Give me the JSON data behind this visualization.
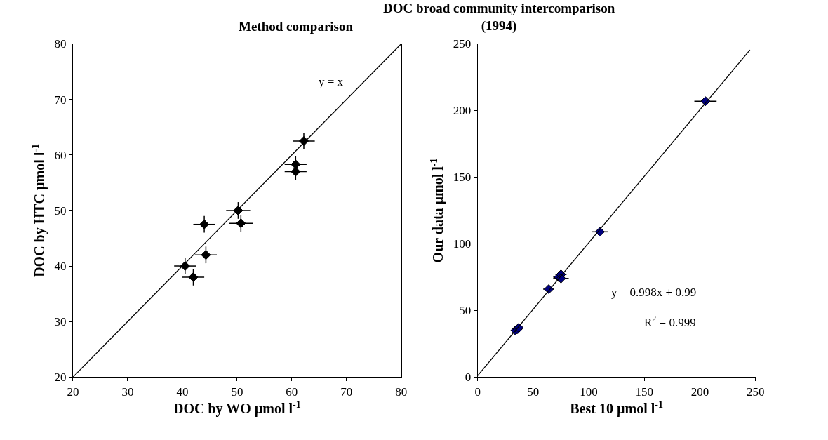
{
  "chart_data": [
    {
      "type": "scatter",
      "title": "Method comparison",
      "xlabel": "DOC by WO µmol l$^{-1}$",
      "ylabel": "DOC by HTC µmol l$^{-1}$",
      "xlim": [
        20,
        80
      ],
      "ylim": [
        20,
        80
      ],
      "xticks": [
        20,
        30,
        40,
        50,
        60,
        70,
        80
      ],
      "yticks": [
        20,
        30,
        40,
        50,
        60,
        70,
        80
      ],
      "marker": "diamond",
      "series": [
        {
          "color": "#000000",
          "x": [
            40.5,
            42,
            44,
            44.3,
            50.2,
            50.7,
            60.7,
            60.7,
            62.2
          ],
          "values": [
            40,
            38,
            47.5,
            42,
            50,
            47.7,
            58.3,
            57,
            62.5
          ],
          "xerrors": [
            2,
            2,
            2,
            2,
            2.2,
            2.2,
            2,
            2,
            2
          ],
          "errors": [
            1.5,
            1.5,
            1.5,
            1.5,
            1.5,
            1.5,
            1.5,
            1.5,
            1.5
          ]
        },
        {
          "type": "line",
          "color": "#000000",
          "x": [
            20,
            80
          ],
          "values": [
            20,
            80
          ],
          "marker": "none",
          "line_style": "solid"
        }
      ],
      "annotations": [
        "y = x"
      ]
    },
    {
      "type": "scatter",
      "title": "DOC broad community intercomparison (1994)",
      "xlabel": "Best 10 µmol l$^{-1}$",
      "ylabel": "Our data µmol l$^{-1}$",
      "xlim": [
        0,
        250
      ],
      "ylim": [
        0,
        250
      ],
      "xticks": [
        0,
        50,
        100,
        150,
        200,
        250
      ],
      "yticks": [
        0,
        50,
        100,
        150,
        200,
        250
      ],
      "marker": "diamond",
      "series": [
        {
          "color": "#000080",
          "x": [
            34,
            36,
            37,
            64,
            73,
            75,
            75,
            110,
            205
          ],
          "values": [
            35,
            36,
            37,
            66,
            75,
            77,
            74,
            109,
            207
          ],
          "xerrors": [
            4,
            4,
            4,
            5,
            5,
            5,
            7,
            7,
            10
          ],
          "errors": [
            null,
            null,
            null,
            null,
            null,
            null,
            null,
            null,
            null
          ]
        },
        {
          "type": "line",
          "color": "#000000",
          "x": [
            0,
            245
          ],
          "values": [
            1,
            245.5
          ],
          "marker": "none",
          "line_style": "solid"
        }
      ],
      "annotations": [
        "y = 0.998x + 0.99",
        "R$^{2}$ = 0.999"
      ]
    }
  ]
}
